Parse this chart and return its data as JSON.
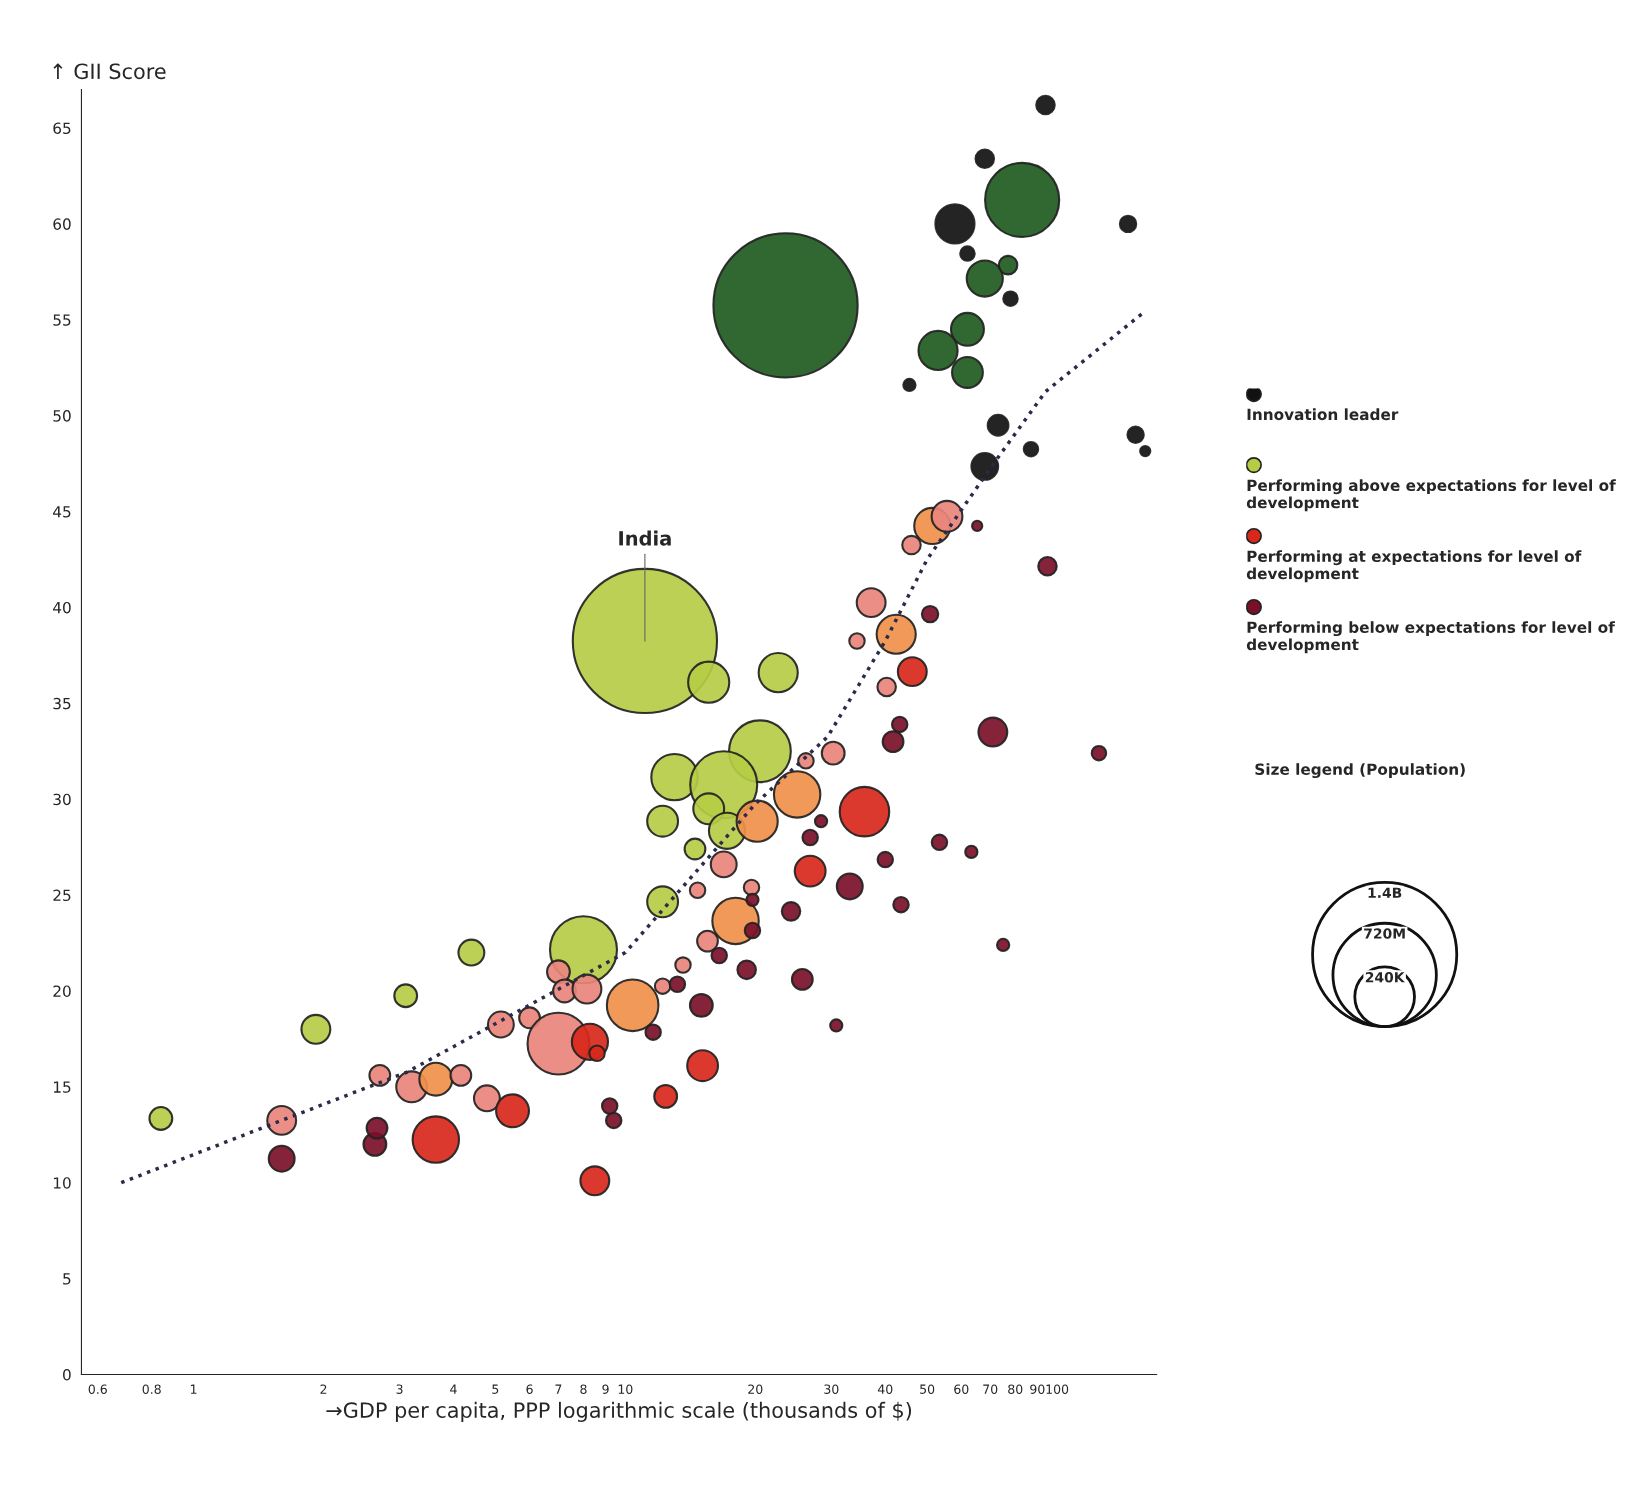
{
  "chart_data": {
    "type": "bubble",
    "xlabel": "→GDP per capita, PPP logarithmic scale (thousands of $)",
    "ylabel": "↑ GII Score",
    "log": "x",
    "xlim": [
      0.55,
      170
    ],
    "ylim": [
      0,
      67
    ],
    "xticks": [
      0.6,
      0.8,
      1,
      2,
      3,
      4,
      5,
      6,
      7,
      8,
      9,
      10,
      20,
      30,
      40,
      50,
      60,
      70,
      80,
      90,
      100
    ],
    "yticks": [
      0,
      5,
      10,
      15,
      20,
      25,
      30,
      35,
      40,
      45,
      50,
      55,
      60,
      65
    ],
    "grid": false,
    "legend": "right",
    "size_legend": [
      {
        "value": 1400,
        "label": "1.4B"
      },
      {
        "value": 720,
        "label": "720M"
      },
      {
        "value": 240,
        "label": "240K"
      }
    ],
    "annotations": [
      {
        "text": "India",
        "x": 11.1,
        "y": 38.25
      },
      "Size legend (Population)"
    ],
    "series": [
      {
        "name": "Innovation leader",
        "type": "bubble",
        "color": "#111111",
        "x": [
          94,
          68,
          83,
          58,
          146,
          23.5,
          62,
          68,
          77,
          78,
          62,
          53,
          62,
          45.5,
          73,
          87,
          68,
          152,
          160
        ],
        "values": [
          66.2,
          63.4,
          61.25,
          60,
          60,
          55.75,
          58.45,
          57.15,
          57.85,
          56.1,
          54.5,
          53.4,
          52.25,
          51.6,
          49.5,
          48.25,
          47.35,
          49,
          48.15
        ],
        "sizes": [
          23,
          23,
          370,
          103,
          18,
          1400,
          14,
          88,
          23,
          14,
          73,
          103,
          64,
          10,
          29,
          14,
          48,
          18,
          7
        ],
        "colors": [
          "#111111",
          "#111111",
          "#1f5a1f",
          "#111111",
          "#111111",
          "#1f5a1f",
          "#111111",
          "#1f5a1f",
          "#1f5a1f",
          "#111111",
          "#1f5a1f",
          "#1f5a1f",
          "#1f5a1f",
          "#111111",
          "#111111",
          "#111111",
          "#111111",
          "#111111",
          "#111111"
        ]
      },
      {
        "name": "Performing above expectations for level of development",
        "type": "bubble",
        "color": "#b5cc45",
        "x": [
          11.1,
          15.6,
          22.6,
          20.5,
          13,
          16.9,
          15.6,
          17.2,
          12.2,
          14.5,
          12.2,
          8,
          4.4,
          3.1,
          1.92,
          0.84
        ],
        "values": [
          38.25,
          36.1,
          36.6,
          32.5,
          31.15,
          30.75,
          29.5,
          28.35,
          28.85,
          27.4,
          24.65,
          22.15,
          22,
          19.75,
          18,
          13.35
        ],
        "sizes": [
          1400,
          114,
          103,
          257,
          145,
          302,
          64,
          88,
          64,
          29,
          64,
          302,
          45,
          35,
          56,
          35
        ]
      },
      {
        "name": "Performing at expectations for level of development",
        "type": "bubble",
        "color": "#d8281c",
        "x": [
          1.6,
          2.7,
          3.2,
          3.64,
          4.16,
          4.78,
          5.48,
          5.15,
          6,
          7,
          8.28,
          7,
          7.23,
          8.15,
          10.4,
          8.6,
          3.64,
          15.1,
          8.5,
          12.4,
          18,
          16.9,
          20.2,
          25,
          35.8,
          15.5,
          13.6,
          12.2,
          37.1,
          42.4,
          46.2,
          40.3,
          34.4,
          51.4,
          55.6,
          46,
          30.3,
          26.2,
          19.6,
          14.7,
          26.8
        ],
        "values": [
          13.25,
          15.6,
          15,
          15.4,
          15.6,
          14.4,
          13.75,
          18.25,
          18.6,
          17.25,
          17.35,
          21,
          20,
          20.1,
          19.25,
          16.75,
          12.25,
          16.1,
          10.1,
          14.5,
          23.65,
          26.6,
          28.85,
          30.25,
          29.35,
          22.6,
          21.35,
          20.25,
          40.25,
          38.6,
          36.65,
          35.85,
          38.25,
          44.25,
          44.75,
          43.25,
          32.4,
          32,
          25.4,
          25.25,
          26.25
        ],
        "sizes": [
          56,
          29,
          64,
          73,
          29,
          45,
          73,
          45,
          29,
          257,
          88,
          35,
          35,
          56,
          179,
          16,
          145,
          64,
          56,
          35,
          145,
          45,
          114,
          145,
          165,
          29,
          16,
          16,
          56,
          103,
          56,
          23,
          16,
          88,
          64,
          23,
          35,
          16,
          16,
          16,
          64
        ],
        "colors": [
          "#e9857c",
          "#e9857c",
          "#e9857c",
          "#f0904a",
          "#e9857c",
          "#e9857c",
          "#d8281c",
          "#e9857c",
          "#e9857c",
          "#e9857c",
          "#d8281c",
          "#e9857c",
          "#e9857c",
          "#e9857c",
          "#f0904a",
          "#d8281c",
          "#d8281c",
          "#d8281c",
          "#d8281c",
          "#d8281c",
          "#f0904a",
          "#e9857c",
          "#f0904a",
          "#f0904a",
          "#d8281c",
          "#e9857c",
          "#e9857c",
          "#e9857c",
          "#e9857c",
          "#f0904a",
          "#d8281c",
          "#e9857c",
          "#e9857c",
          "#f0904a",
          "#e9857c",
          "#e9857c",
          "#e9857c",
          "#e9857c",
          "#e9857c",
          "#e9857c",
          "#d8281c"
        ]
      },
      {
        "name": "Performing below expectations for level of development",
        "type": "bubble",
        "color": "#7a1028",
        "x": [
          95,
          1.6,
          2.63,
          2.66,
          9.4,
          9.2,
          11.6,
          13.2,
          15,
          16.5,
          19.1,
          25.7,
          24.2,
          19.7,
          33.1,
          26.8,
          28.4,
          41.7,
          43.2,
          71,
          53.4,
          63.3,
          40,
          43.5,
          30.8,
          75,
          125,
          65.3,
          50.8,
          19.7
        ],
        "values": [
          42.15,
          11.25,
          12,
          12.85,
          13.25,
          14,
          17.85,
          20.35,
          19.25,
          21.85,
          21.1,
          20.6,
          24.15,
          23.15,
          25.45,
          28,
          28.85,
          33,
          33.9,
          33.5,
          27.75,
          27.25,
          26.85,
          24.5,
          18.2,
          22.4,
          32.4,
          44.25,
          39.65,
          24.75
        ],
        "sizes": [
          23,
          45,
          35,
          29,
          16,
          16,
          16,
          16,
          35,
          16,
          23,
          29,
          23,
          16,
          45,
          16,
          10,
          29,
          16,
          56,
          16,
          10,
          16,
          16,
          10,
          10,
          14,
          7,
          18,
          10
        ]
      },
      {
        "type": "line",
        "color": "#2a2a4a",
        "line_style": "dotted",
        "x": [
          0.68,
          1.6,
          3.11,
          10,
          20,
          29.4,
          40,
          50,
          70,
          94,
          158
        ],
        "values": [
          10,
          13.25,
          15.75,
          22,
          29.75,
          33.25,
          38.25,
          42.5,
          47.25,
          51.25,
          55.35
        ]
      }
    ]
  }
}
